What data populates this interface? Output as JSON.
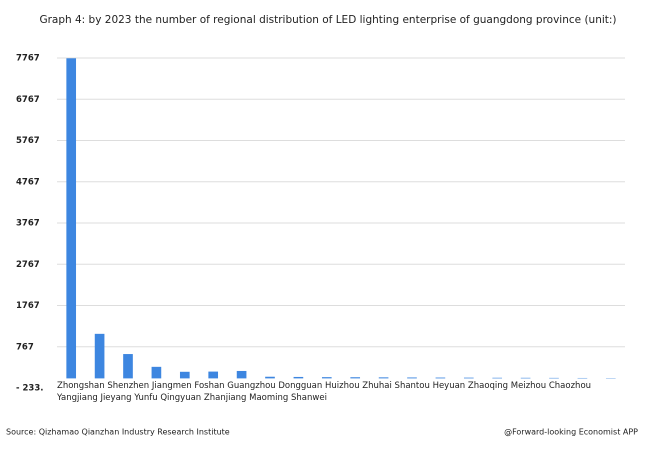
{
  "chart_data": {
    "type": "bar",
    "title": "Graph 4: by 2023 the number of regional distribution of LED lighting enterprise of guangdong province (unit:)",
    "categories": [
      "Zhongshan",
      "Shenzhen",
      "Jiangmen",
      "Foshan",
      "Guangzhou",
      "Dongguan",
      "Huizhou",
      "Zhuhai",
      "Shantou",
      "Heyuan",
      "Zhaoqing",
      "Meizhou",
      "Chaozhou",
      "Yangjiang",
      "Jieyang",
      "Yunfu",
      "Qingyuan",
      "Zhanjiang",
      "Maoming",
      "Shanwei"
    ],
    "values": [
      7760,
      1080,
      590,
      280,
      160,
      165,
      180,
      40,
      35,
      30,
      28,
      25,
      22,
      20,
      18,
      15,
      14,
      12,
      10,
      8
    ],
    "color": "#3d86e0",
    "ylim": [
      -233,
      7767
    ],
    "yticks": [
      {
        "value": -233,
        "label": "- 233."
      },
      767,
      1767,
      2767,
      3767,
      4767,
      5767,
      6767,
      7767
    ],
    "grid": true,
    "source": "Source: Qizhamao Qianzhan Industry Research Institute",
    "credit": "@Forward-looking Economist APP"
  }
}
